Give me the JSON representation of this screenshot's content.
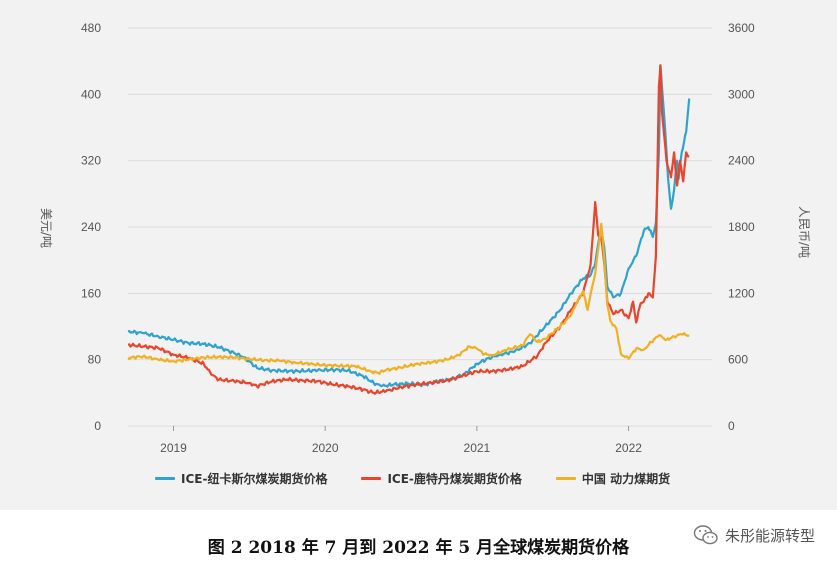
{
  "caption": "图 2   2018 年 7 月到 2022 年 5 月全球煤炭期货价格",
  "watermark": {
    "icon": "wechat-icon",
    "text": "朱彤能源转型"
  },
  "chart_data": {
    "type": "line",
    "xlabel": "",
    "ylabel_left": "美元/吨",
    "ylabel_right": "人民币/吨",
    "xlim": [
      2018.7,
      2022.55
    ],
    "ylim_left": [
      0,
      480
    ],
    "ylim_right": [
      0,
      3600
    ],
    "y_ticks_left": [
      "0",
      "80",
      "160",
      "240",
      "320",
      "400",
      "480"
    ],
    "y_ticks_right": [
      "0",
      "600",
      "1200",
      "1800",
      "2400",
      "3000",
      "3600"
    ],
    "x_ticks": [
      {
        "value": 2019.0,
        "label": "2019"
      },
      {
        "value": 2020.0,
        "label": "2020"
      },
      {
        "value": 2021.0,
        "label": "2021"
      },
      {
        "value": 2022.0,
        "label": "2022"
      }
    ],
    "grid": true,
    "legend_position": "bottom",
    "series": [
      {
        "name": "ICE-纽卡斯尔煤炭期货价格",
        "axis": "left",
        "color": "#2fa3cf",
        "points": [
          [
            2018.7,
            114
          ],
          [
            2018.8,
            112
          ],
          [
            2018.9,
            108
          ],
          [
            2019.0,
            104
          ],
          [
            2019.1,
            100
          ],
          [
            2019.2,
            99
          ],
          [
            2019.3,
            95
          ],
          [
            2019.4,
            88
          ],
          [
            2019.45,
            84
          ],
          [
            2019.5,
            78
          ],
          [
            2019.55,
            70
          ],
          [
            2019.65,
            67
          ],
          [
            2019.8,
            66
          ],
          [
            2019.95,
            67
          ],
          [
            2020.05,
            68
          ],
          [
            2020.15,
            67
          ],
          [
            2020.25,
            60
          ],
          [
            2020.32,
            52
          ],
          [
            2020.37,
            48
          ],
          [
            2020.45,
            50
          ],
          [
            2020.55,
            51
          ],
          [
            2020.65,
            50
          ],
          [
            2020.75,
            54
          ],
          [
            2020.85,
            57
          ],
          [
            2020.92,
            63
          ],
          [
            2021.0,
            75
          ],
          [
            2021.08,
            82
          ],
          [
            2021.15,
            86
          ],
          [
            2021.25,
            90
          ],
          [
            2021.35,
            100
          ],
          [
            2021.45,
            120
          ],
          [
            2021.55,
            140
          ],
          [
            2021.62,
            160
          ],
          [
            2021.7,
            178
          ],
          [
            2021.75,
            182
          ],
          [
            2021.78,
            196
          ],
          [
            2021.8,
            220
          ],
          [
            2021.82,
            240
          ],
          [
            2021.84,
            215
          ],
          [
            2021.86,
            168
          ],
          [
            2021.9,
            155
          ],
          [
            2021.95,
            160
          ],
          [
            2022.0,
            190
          ],
          [
            2022.05,
            205
          ],
          [
            2022.1,
            235
          ],
          [
            2022.13,
            240
          ],
          [
            2022.16,
            228
          ],
          [
            2022.18,
            245
          ],
          [
            2022.2,
            330
          ],
          [
            2022.21,
            435
          ],
          [
            2022.22,
            410
          ],
          [
            2022.24,
            360
          ],
          [
            2022.26,
            300
          ],
          [
            2022.28,
            262
          ],
          [
            2022.3,
            285
          ],
          [
            2022.32,
            320
          ],
          [
            2022.33,
            298
          ],
          [
            2022.35,
            330
          ],
          [
            2022.38,
            355
          ],
          [
            2022.4,
            395
          ]
        ]
      },
      {
        "name": "ICE-鹿特丹煤炭期货价格",
        "axis": "left",
        "color": "#e8452c",
        "points": [
          [
            2018.7,
            98
          ],
          [
            2018.8,
            96
          ],
          [
            2018.9,
            94
          ],
          [
            2019.0,
            86
          ],
          [
            2019.1,
            82
          ],
          [
            2019.2,
            75
          ],
          [
            2019.25,
            62
          ],
          [
            2019.3,
            56
          ],
          [
            2019.4,
            54
          ],
          [
            2019.5,
            52
          ],
          [
            2019.55,
            48
          ],
          [
            2019.65,
            54
          ],
          [
            2019.75,
            56
          ],
          [
            2019.85,
            55
          ],
          [
            2019.95,
            54
          ],
          [
            2020.05,
            50
          ],
          [
            2020.15,
            48
          ],
          [
            2020.25,
            44
          ],
          [
            2020.32,
            40
          ],
          [
            2020.4,
            42
          ],
          [
            2020.5,
            47
          ],
          [
            2020.6,
            50
          ],
          [
            2020.7,
            52
          ],
          [
            2020.8,
            55
          ],
          [
            2020.9,
            60
          ],
          [
            2021.0,
            66
          ],
          [
            2021.1,
            66
          ],
          [
            2021.2,
            68
          ],
          [
            2021.3,
            72
          ],
          [
            2021.4,
            85
          ],
          [
            2021.45,
            100
          ],
          [
            2021.55,
            120
          ],
          [
            2021.62,
            140
          ],
          [
            2021.7,
            160
          ],
          [
            2021.75,
            195
          ],
          [
            2021.78,
            270
          ],
          [
            2021.8,
            230
          ],
          [
            2021.82,
            228
          ],
          [
            2021.84,
            195
          ],
          [
            2021.86,
            150
          ],
          [
            2021.9,
            135
          ],
          [
            2021.95,
            140
          ],
          [
            2022.0,
            130
          ],
          [
            2022.03,
            150
          ],
          [
            2022.05,
            125
          ],
          [
            2022.08,
            148
          ],
          [
            2022.1,
            150
          ],
          [
            2022.13,
            160
          ],
          [
            2022.16,
            155
          ],
          [
            2022.18,
            205
          ],
          [
            2022.2,
            410
          ],
          [
            2022.21,
            435
          ],
          [
            2022.22,
            380
          ],
          [
            2022.25,
            320
          ],
          [
            2022.28,
            300
          ],
          [
            2022.3,
            330
          ],
          [
            2022.32,
            290
          ],
          [
            2022.34,
            320
          ],
          [
            2022.36,
            295
          ],
          [
            2022.38,
            330
          ],
          [
            2022.4,
            325
          ]
        ]
      },
      {
        "name": "中国 动力煤期货",
        "axis": "right",
        "color": "#f0b023",
        "points": [
          [
            2018.7,
            615
          ],
          [
            2018.8,
            630
          ],
          [
            2018.9,
            600
          ],
          [
            2019.0,
            585
          ],
          [
            2019.1,
            600
          ],
          [
            2019.2,
            620
          ],
          [
            2019.3,
            625
          ],
          [
            2019.4,
            620
          ],
          [
            2019.5,
            605
          ],
          [
            2019.6,
            595
          ],
          [
            2019.7,
            590
          ],
          [
            2019.8,
            575
          ],
          [
            2019.9,
            560
          ],
          [
            2020.0,
            550
          ],
          [
            2020.1,
            545
          ],
          [
            2020.2,
            540
          ],
          [
            2020.3,
            495
          ],
          [
            2020.35,
            480
          ],
          [
            2020.4,
            505
          ],
          [
            2020.5,
            530
          ],
          [
            2020.6,
            560
          ],
          [
            2020.7,
            575
          ],
          [
            2020.8,
            600
          ],
          [
            2020.88,
            640
          ],
          [
            2020.95,
            720
          ],
          [
            2021.0,
            700
          ],
          [
            2021.05,
            650
          ],
          [
            2021.1,
            640
          ],
          [
            2021.2,
            690
          ],
          [
            2021.3,
            730
          ],
          [
            2021.35,
            830
          ],
          [
            2021.4,
            760
          ],
          [
            2021.45,
            790
          ],
          [
            2021.55,
            900
          ],
          [
            2021.62,
            1000
          ],
          [
            2021.66,
            1120
          ],
          [
            2021.7,
            1220
          ],
          [
            2021.73,
            1050
          ],
          [
            2021.76,
            1260
          ],
          [
            2021.78,
            1380
          ],
          [
            2021.8,
            1600
          ],
          [
            2021.82,
            1830
          ],
          [
            2021.84,
            1500
          ],
          [
            2021.86,
            1100
          ],
          [
            2021.88,
            950
          ],
          [
            2021.92,
            880
          ],
          [
            2021.95,
            650
          ],
          [
            2022.0,
            610
          ],
          [
            2022.05,
            700
          ],
          [
            2022.1,
            690
          ],
          [
            2022.15,
            760
          ],
          [
            2022.2,
            820
          ],
          [
            2022.25,
            780
          ],
          [
            2022.3,
            810
          ],
          [
            2022.35,
            830
          ],
          [
            2022.4,
            820
          ]
        ]
      }
    ]
  }
}
